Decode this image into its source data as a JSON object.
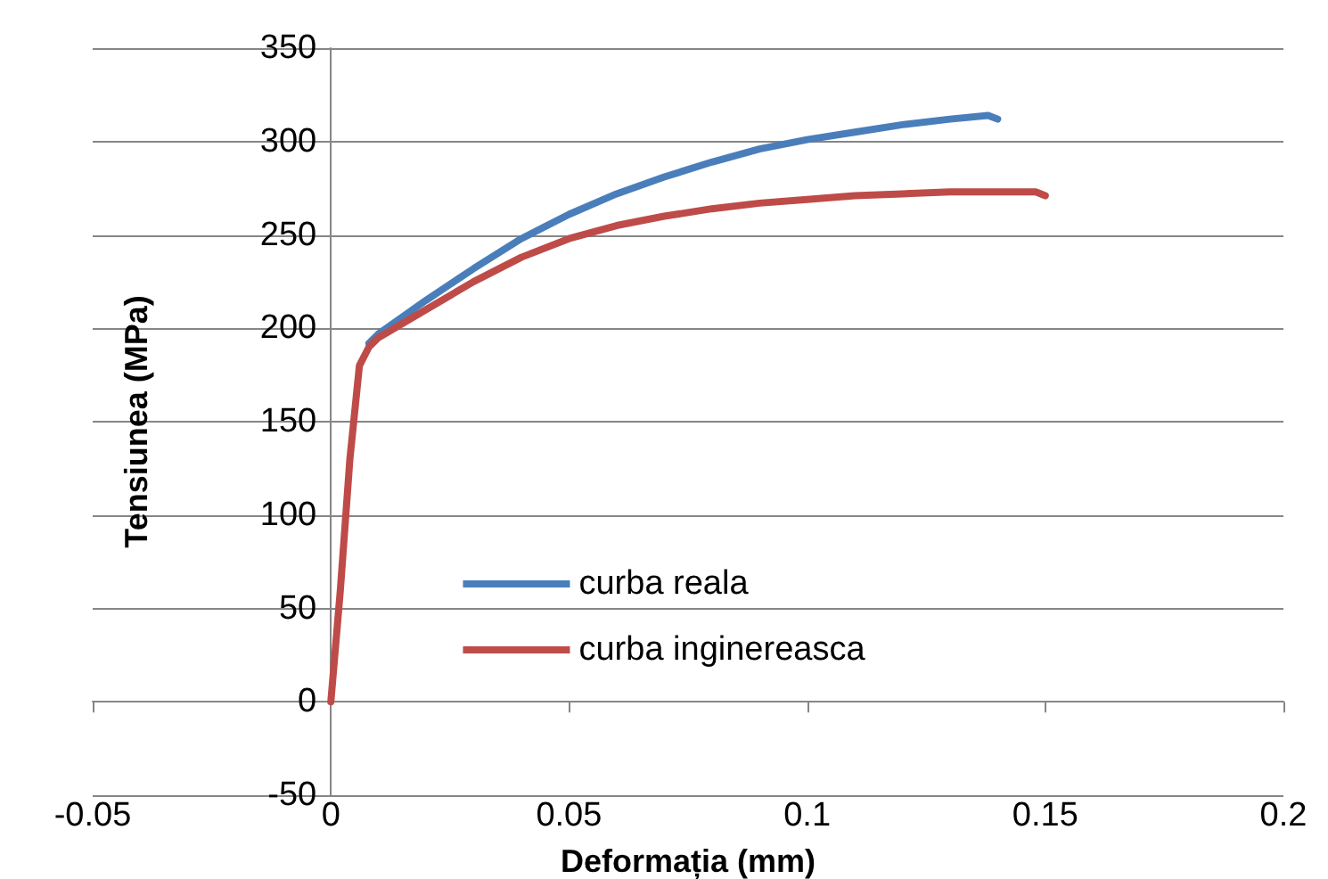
{
  "chart_data": {
    "type": "line",
    "xlabel": "Deformația (mm)",
    "ylabel": "Tensiunea (MPa)",
    "series": [
      {
        "name": "curba reala",
        "color": "#4a7ebb",
        "x": [
          0.008,
          0.01,
          0.02,
          0.03,
          0.04,
          0.05,
          0.06,
          0.07,
          0.08,
          0.09,
          0.1,
          0.11,
          0.12,
          0.13,
          0.138,
          0.14
        ],
        "values": [
          192,
          197,
          215,
          232,
          248,
          261,
          272,
          281,
          289,
          296,
          301,
          305,
          309,
          312,
          314,
          312
        ]
      },
      {
        "name": "curba inginereasca",
        "color": "#be4b48",
        "x": [
          0,
          0.002,
          0.004,
          0.006,
          0.008,
          0.01,
          0.02,
          0.03,
          0.04,
          0.05,
          0.06,
          0.07,
          0.08,
          0.09,
          0.1,
          0.11,
          0.12,
          0.13,
          0.14,
          0.148,
          0.15
        ],
        "values": [
          0,
          60,
          130,
          180,
          190,
          195,
          210,
          225,
          238,
          248,
          255,
          260,
          264,
          267,
          269,
          271,
          272,
          273,
          273,
          273,
          271
        ]
      }
    ],
    "xlim": [
      -0.05,
      0.2
    ],
    "xticks": [
      -0.05,
      0,
      0.05,
      0.1,
      0.15,
      0.2
    ],
    "ylim": [
      -50,
      350
    ],
    "yticks": [
      -50,
      0,
      50,
      100,
      150,
      200,
      250,
      300,
      350
    ],
    "grid": "y",
    "legend": "bottom",
    "marker": "none",
    "line_style": "solid"
  }
}
